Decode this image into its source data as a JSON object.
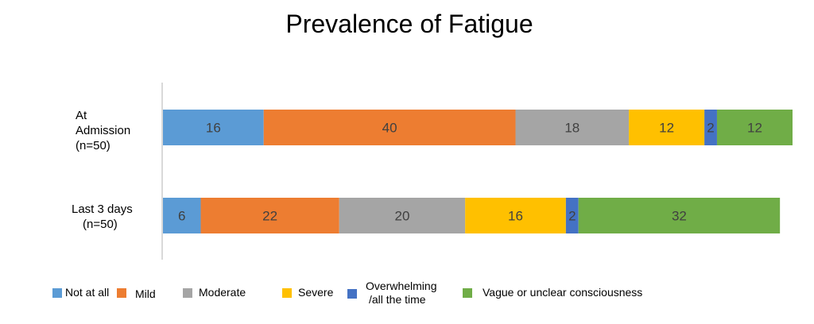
{
  "colors": {
    "not_at_all": "#5b9bd5",
    "mild": "#ed7d31",
    "moderate": "#a5a5a5",
    "severe": "#ffc000",
    "overwhelming": "#4472c4",
    "vague": "#70ad47",
    "axis": "#d9d9d9",
    "label_text": "#404040"
  },
  "chart_data": {
    "type": "bar",
    "orientation": "horizontal",
    "stacked": true,
    "title": "Prevalence of Fatigue",
    "categories": [
      {
        "lines": [
          "At",
          "Admission",
          "(n=50)"
        ]
      },
      {
        "lines": [
          "Last 3 days",
          "(n=50)"
        ]
      }
    ],
    "series": [
      {
        "name": "Not at all",
        "key": "not_at_all",
        "values": [
          16,
          6
        ]
      },
      {
        "name": "Mild",
        "key": "mild",
        "values": [
          40,
          22
        ]
      },
      {
        "name": "Moderate",
        "key": "moderate",
        "values": [
          18,
          20
        ]
      },
      {
        "name": "Severe",
        "key": "severe",
        "values": [
          12,
          16
        ]
      },
      {
        "name": "Overwhelming /all the time",
        "key": "overwhelming",
        "lines": [
          "Overwhelming",
          "/all the time"
        ],
        "values": [
          2,
          2
        ]
      },
      {
        "name": "Vague or unclear consciousness",
        "key": "vague",
        "values": [
          12,
          32
        ]
      }
    ],
    "xlim": [
      0,
      100
    ],
    "grid": false,
    "legend_position": "bottom",
    "data_labels": true
  }
}
